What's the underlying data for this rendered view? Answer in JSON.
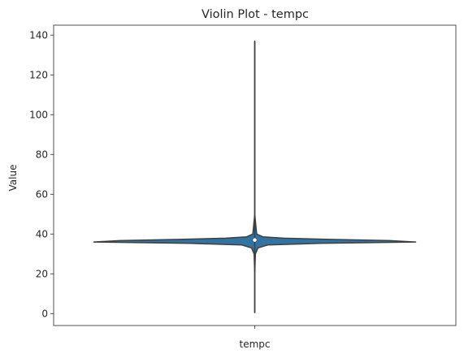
{
  "chart_data": {
    "type": "violin",
    "title": "Violin Plot - tempc",
    "xlabel": "",
    "ylabel": "Value",
    "categories": [
      "tempc"
    ],
    "ylim": [
      -6,
      145
    ],
    "yticks": [
      0,
      20,
      40,
      60,
      80,
      100,
      120,
      140
    ],
    "grid": false,
    "series": [
      {
        "category": "tempc",
        "min": 0.5,
        "q1": 36.3,
        "median": 37.0,
        "q3": 37.6,
        "max": 137,
        "color": "#3274a1",
        "density_profile": [
          [
            0.5,
            0.0
          ],
          [
            20,
            0.0
          ],
          [
            30,
            0.004
          ],
          [
            33,
            0.02
          ],
          [
            34.5,
            0.08
          ],
          [
            35.3,
            0.4
          ],
          [
            36.0,
            1.0
          ],
          [
            36.7,
            0.84
          ],
          [
            37.3,
            0.47
          ],
          [
            37.9,
            0.18
          ],
          [
            38.6,
            0.05
          ],
          [
            40,
            0.012
          ],
          [
            50,
            0.0
          ],
          [
            137,
            0.0
          ]
        ]
      }
    ]
  }
}
